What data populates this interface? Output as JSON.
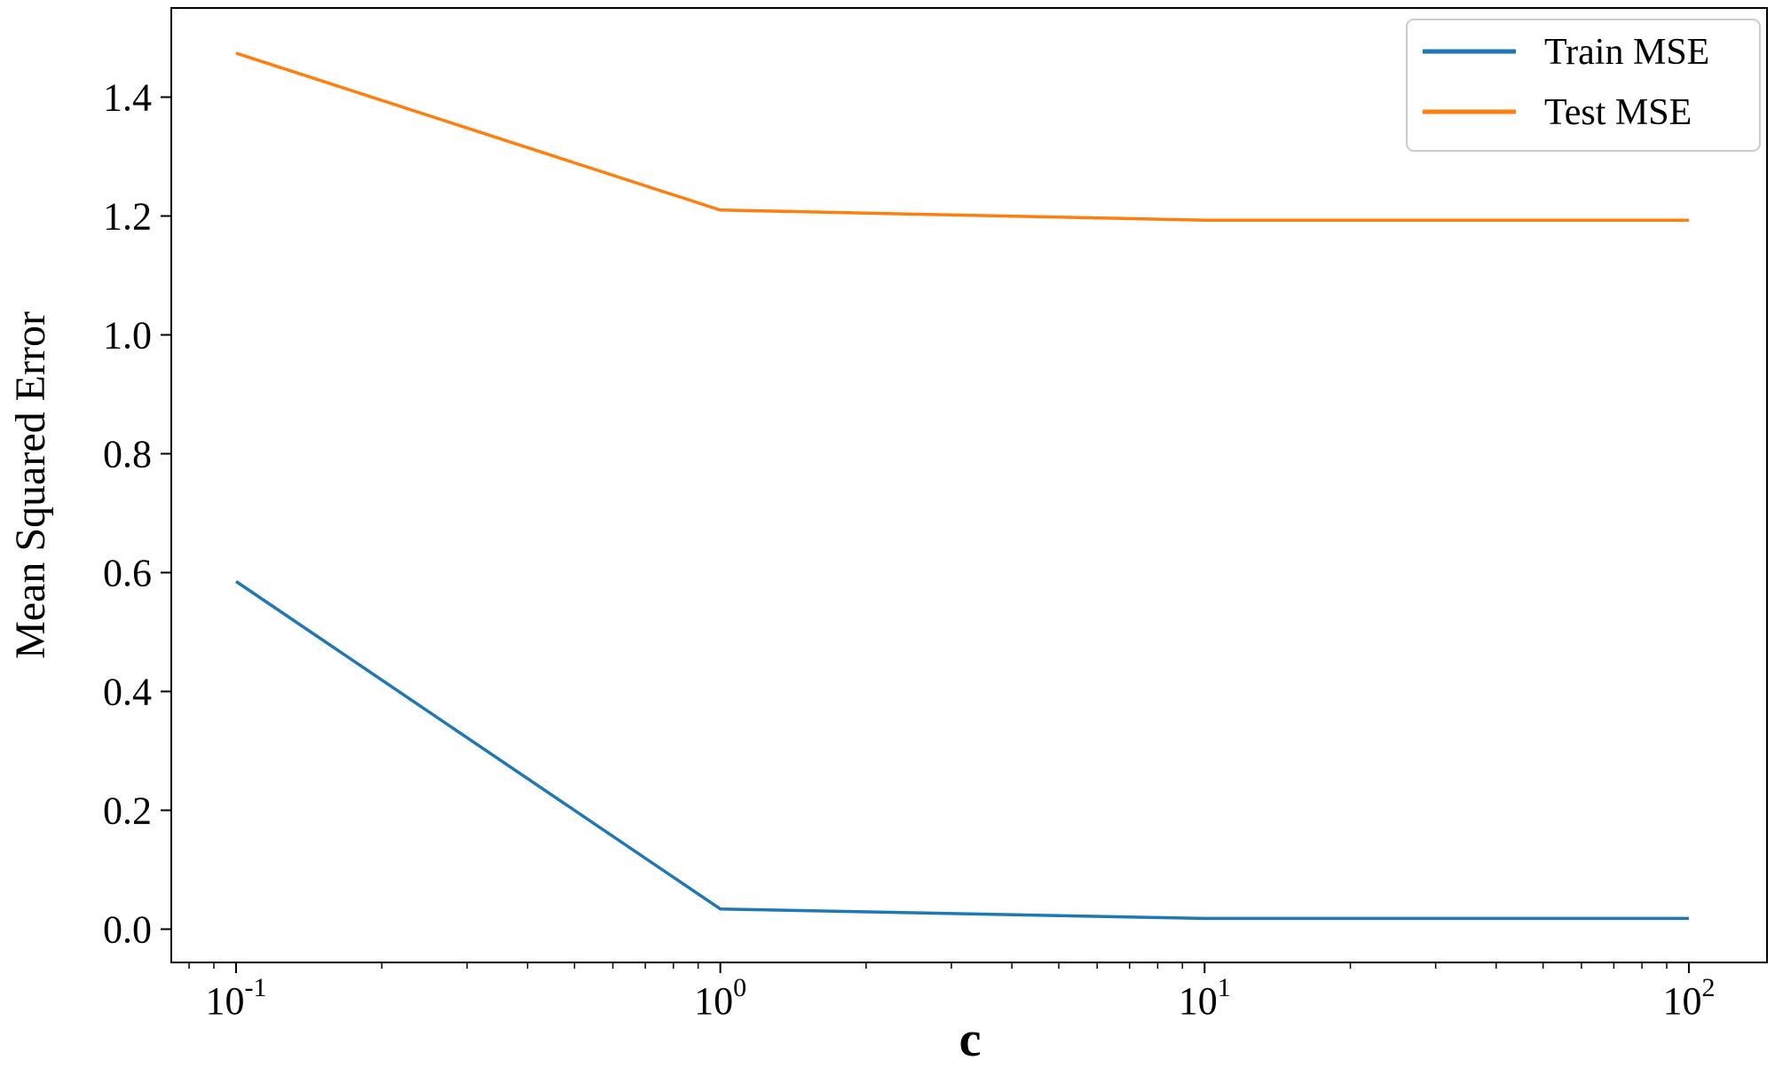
{
  "chart_data": {
    "type": "line",
    "title": "",
    "xlabel": "c",
    "ylabel": "Mean Squared Error",
    "x_scale": "log",
    "x": [
      0.1,
      1,
      10,
      100
    ],
    "x_ticks": [
      {
        "value": 0.1,
        "base": "10",
        "exp": "-1"
      },
      {
        "value": 1,
        "base": "10",
        "exp": "0"
      },
      {
        "value": 10,
        "base": "10",
        "exp": "1"
      },
      {
        "value": 100,
        "base": "10",
        "exp": "2"
      }
    ],
    "y_ticks": [
      "0.0",
      "0.2",
      "0.4",
      "0.6",
      "0.8",
      "1.0",
      "1.2",
      "1.4"
    ],
    "xlim": [
      0.0735,
      145
    ],
    "ylim": [
      -0.056,
      1.55
    ],
    "grid": false,
    "legend_position": "top-right",
    "series": [
      {
        "name": "Train MSE",
        "color": "#1f77b4",
        "values": [
          0.585,
          0.034,
          0.018,
          0.018
        ]
      },
      {
        "name": "Test MSE",
        "color": "#ff7f0e",
        "values": [
          1.474,
          1.21,
          1.193,
          1.193
        ]
      }
    ]
  }
}
